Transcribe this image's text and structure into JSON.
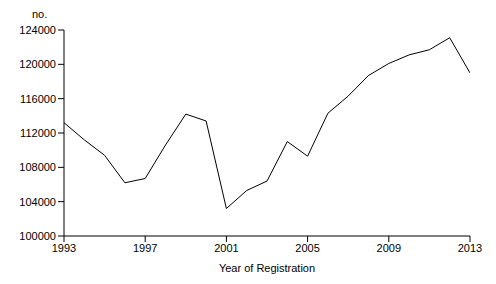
{
  "chart_data": {
    "type": "line",
    "y_label": "no.",
    "x_label": "Year of Registration",
    "x": [
      1993,
      1994,
      1995,
      1996,
      1997,
      1998,
      1999,
      2000,
      2001,
      2002,
      2003,
      2004,
      2005,
      2006,
      2007,
      2008,
      2009,
      2010,
      2011,
      2012,
      2013
    ],
    "values": [
      113200,
      111200,
      109400,
      106200,
      106700,
      110600,
      114200,
      113400,
      103200,
      105300,
      106400,
      111000,
      109300,
      114300,
      116300,
      118700,
      120100,
      121100,
      121700,
      123100,
      119000
    ],
    "color": "#000000",
    "xlim": [
      1993,
      2013
    ],
    "xticks": [
      1993,
      1997,
      2001,
      2005,
      2009,
      2013
    ],
    "ylim": [
      100000,
      124000
    ],
    "yticks": [
      100000,
      104000,
      108000,
      112000,
      116000,
      120000,
      124000
    ],
    "grid": false
  }
}
